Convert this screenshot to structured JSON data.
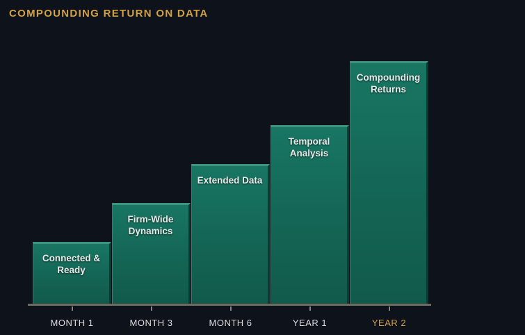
{
  "page": {
    "background_color": "#0d121b"
  },
  "header": {
    "title": "COMPOUNDING RETURN ON DATA",
    "title_color": "#d2a144"
  },
  "chart_data": {
    "type": "bar",
    "title": "COMPOUNDING RETURN ON DATA",
    "categories": [
      "MONTH 1",
      "MONTH 3",
      "MONTH 6",
      "YEAR 1",
      "YEAR 2"
    ],
    "values": [
      25.5,
      41.5,
      57.6,
      73.6,
      100
    ],
    "value_note": "no numeric y-axis shown; values are bar heights as percent of tallest bar",
    "bar_labels": [
      "Connected & Ready",
      "Firm-Wide Dynamics",
      "Extended Data",
      "Temporal Analysis",
      "Compounding Returns"
    ],
    "bar_label_lines": [
      [
        "Connected &",
        "Ready"
      ],
      [
        "Firm-Wide",
        "Dynamics"
      ],
      [
        "Extended Data"
      ],
      [
        "Temporal",
        "Analysis"
      ],
      [
        "Compounding",
        "Returns"
      ]
    ],
    "xlabel": "",
    "ylabel": "",
    "ylim": [
      0,
      100
    ],
    "grid": false,
    "legend": false,
    "highlighted_category": "YEAR 2",
    "colors": {
      "bar_fill": "#146555",
      "bar_fill_top": "#187663",
      "bar_bevel_light": "#3f9480",
      "bar_bevel_dark": "#0c3b31",
      "axis_line": "#6e6962",
      "tick_mark": "#8a8580",
      "tick_label": "#dcdcdc",
      "highlighted_tick_label": "#d2a144",
      "bar_text": "#e9e9e9"
    }
  }
}
